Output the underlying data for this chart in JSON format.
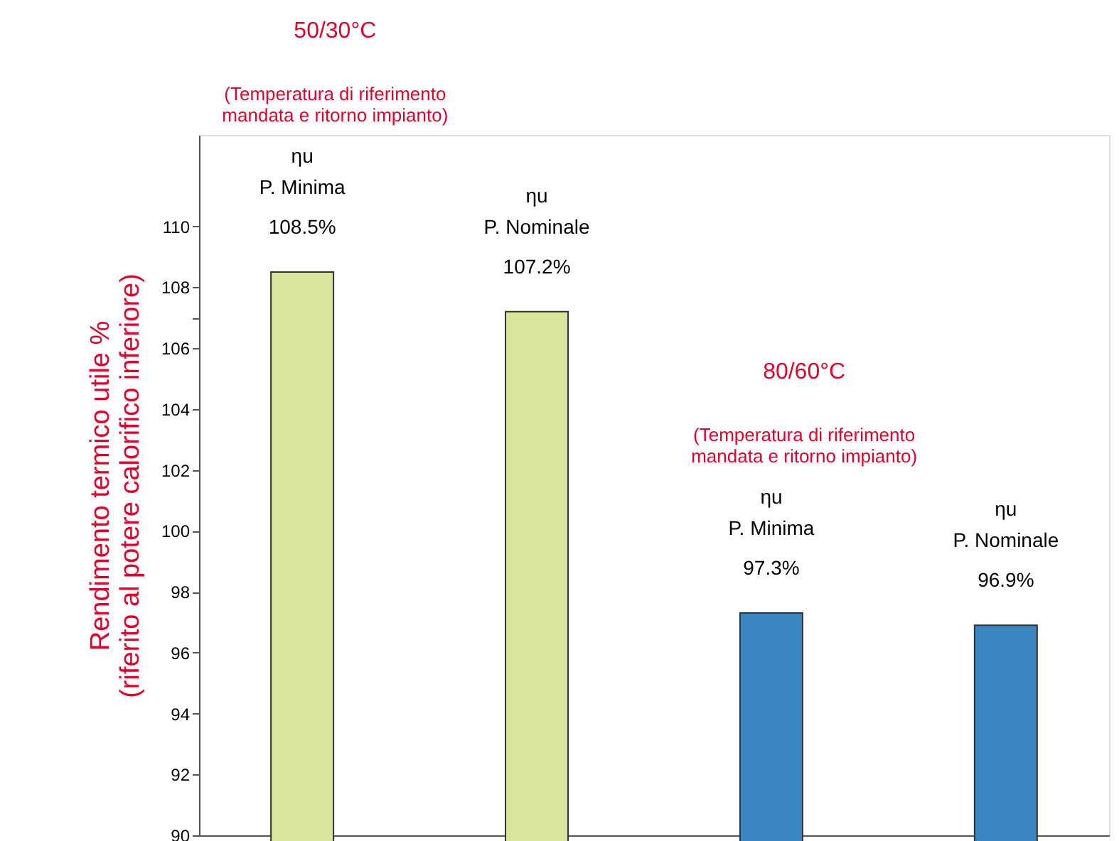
{
  "chart_data": {
    "type": "bar",
    "ylabel": "Rendimento termico utile %\n(riferito al potere calorifico inferiore)",
    "categories": [
      "ηu P. Minima",
      "ηu P. Nominale",
      "ηu P. Minima",
      "ηu P. Nominale"
    ],
    "values": [
      108.5,
      107.2,
      97.3,
      96.9
    ],
    "colors": [
      "#d8e69c",
      "#d8e69c",
      "#3a86c0",
      "#3a86c0"
    ],
    "value_labels": [
      "108.5%",
      "107.2%",
      "97.3%",
      "96.9%"
    ],
    "annotations": [
      "50/30°C",
      "(Temperatura di riferimento\nmandata e ritorno impianto)",
      "80/60°C",
      "(Temperatura di riferimento\nmandata e ritorno impianto)"
    ],
    "ylim": [
      90,
      113
    ],
    "yticks": [
      90,
      92,
      94,
      96,
      98,
      100,
      102,
      104,
      106,
      {
        "value": 107,
        "label": null
      },
      108,
      110
    ],
    "grid": false
  }
}
